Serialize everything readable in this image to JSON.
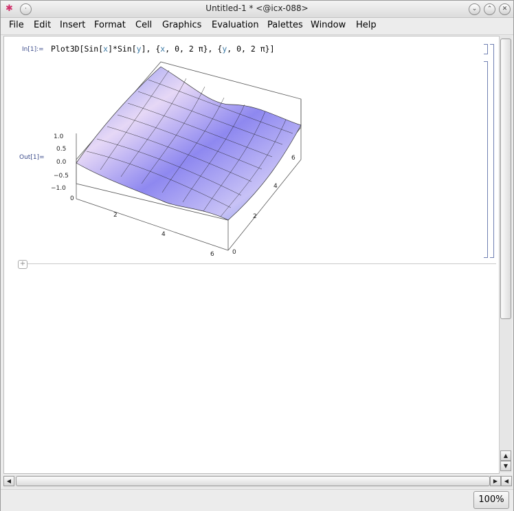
{
  "window": {
    "title": "Untitled-1 * <@icx-088>",
    "buttons": {
      "menu": "✱",
      "shade": "·",
      "minimize": "⌄",
      "maximize": "⌃",
      "close": "✕"
    }
  },
  "menubar": {
    "items": [
      {
        "label": "File"
      },
      {
        "label": "Edit"
      },
      {
        "label": "Insert"
      },
      {
        "label": "Format"
      },
      {
        "label": "Cell"
      },
      {
        "label": "Graphics"
      },
      {
        "label": "Evaluation"
      },
      {
        "label": "Palettes"
      },
      {
        "label": "Window"
      },
      {
        "label": "Help"
      }
    ]
  },
  "notebook": {
    "input_label": "In[1]:=",
    "output_label": "Out[1]=",
    "input_code": {
      "p1": "Plot3D[Sin[",
      "x1": "x",
      "p2": "]*Sin[",
      "y1": "y",
      "p3": "], {",
      "x2": "x",
      "p4": ", 0, 2 π}, {",
      "y2": "y",
      "p5": ", 0, 2 π}]"
    },
    "plot": {
      "z_ticks": [
        "1.0",
        "0.5",
        "0.0",
        "−0.5",
        "−1.0"
      ],
      "x_ticks": [
        "0",
        "2",
        "4",
        "6"
      ],
      "y_ticks": [
        "0",
        "2",
        "4",
        "6"
      ]
    },
    "add_cell_icon": "+"
  },
  "statusbar": {
    "zoom": "100%"
  },
  "colors": {
    "label": "#3a4a8a",
    "bracket": "#6f7fb2",
    "variable": "#3b7aa6",
    "surface": "#9a9af0"
  }
}
